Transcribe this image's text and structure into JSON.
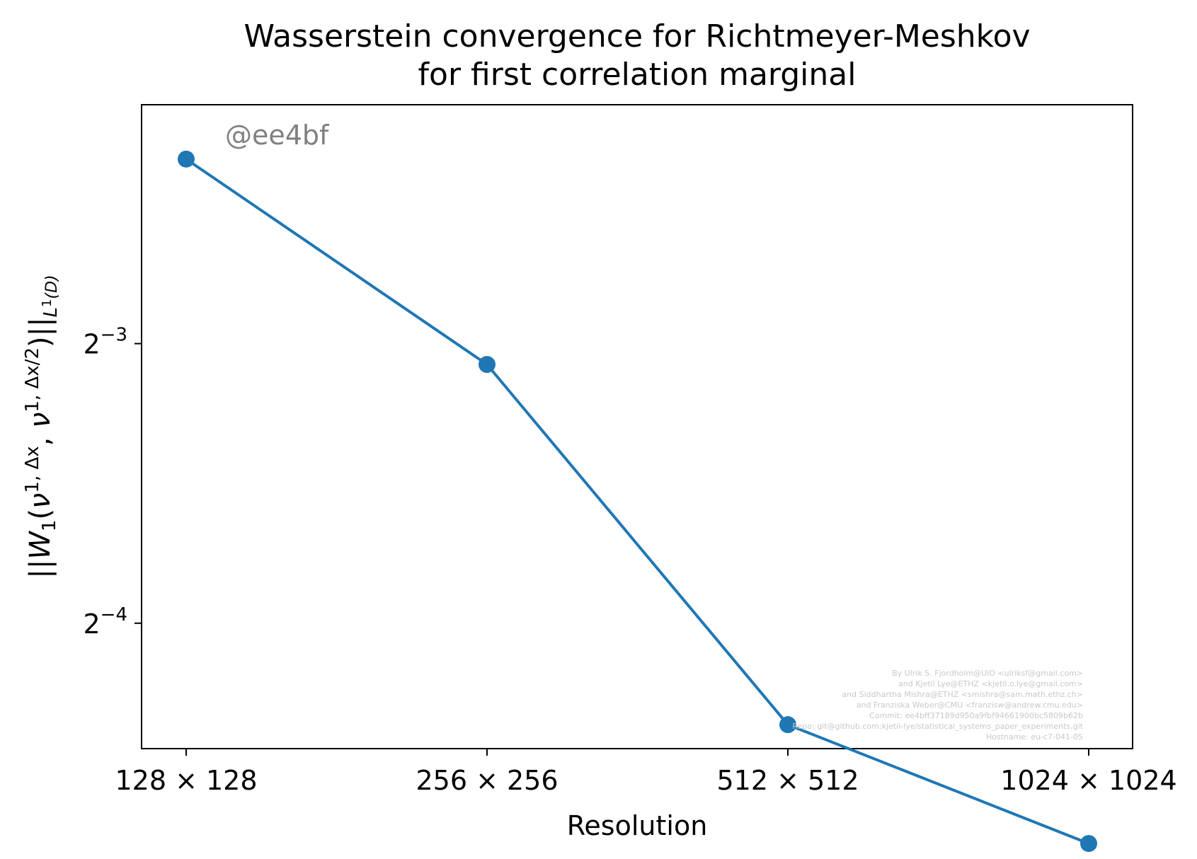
{
  "chart_data": {
    "type": "line",
    "title": "Wasserstein convergence for Richtmeyer-Meshkov",
    "subtitle": "for first correlation marginal",
    "xlabel": "Resolution",
    "ylabel": "||W_1(ν^{1,Δx}, ν^{1,Δx/2})||_{L^1(D)}",
    "yscale": "log2",
    "ylim": [
      0.0458,
      0.226
    ],
    "categories": [
      "128 × 128",
      "256 × 256",
      "512 × 512",
      "1024 × 1024"
    ],
    "yticks": [
      {
        "value": 0.125,
        "base": "2",
        "exp": "−3"
      },
      {
        "value": 0.0625,
        "base": "2",
        "exp": "−4"
      }
    ],
    "series": [
      {
        "values": [
          0.1975,
          0.1187,
          0.0486,
          0.0362
        ],
        "color": "#1f77b4"
      }
    ],
    "grid": false,
    "legend": "none",
    "watermark": "@ee4bf",
    "credits": [
      "By Ulrik S. Fjordholm@UiO <ulriksf@gmail.com>",
      "and Kjetil Lye@ETHZ <kjetil.o.lye@gmail.com>",
      "and Siddhartha Mishra@ETHZ <smishra@sam.math.ethz.ch>",
      "and Franziska Weber@CMU <franzisw@andrew.cmu.edu>",
      "Commit: ee4bff37189d950a9fbf94661900bc5809b62b",
      "Repo: git@github.com:kjetil-lye/statistical_systems_paper_experiments.git",
      "Hostname: eu-c7-041-05"
    ]
  }
}
